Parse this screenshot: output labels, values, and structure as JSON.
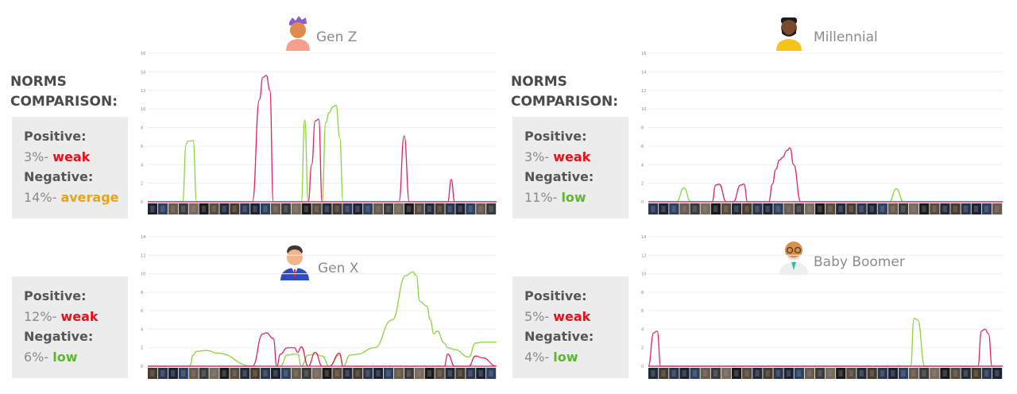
{
  "colors": {
    "positive": "#8cd43c",
    "negative": "#e0245e",
    "weak": "#e8101a",
    "average": "#e8a317",
    "low": "#5cb82e"
  },
  "panels": [
    {
      "norms_heading": [
        "NORMS",
        "COMPARISON:"
      ],
      "positive_label": "Positive:",
      "positive_value": "3%-",
      "positive_rating": "weak",
      "negative_label": "Negative:",
      "negative_value": "14%-",
      "negative_rating": "average"
    },
    {
      "norms_heading": [
        "NORMS",
        "COMPARISON:"
      ],
      "positive_label": "Positive:",
      "positive_value": "3%-",
      "positive_rating": "weak",
      "negative_label": "Negative:",
      "negative_value": "11%-",
      "negative_rating": "low"
    },
    {
      "positive_label": "Positive:",
      "positive_value": "12%-",
      "positive_rating": "weak",
      "negative_label": "Negative:",
      "negative_value": "6%-",
      "negative_rating": "low"
    },
    {
      "positive_label": "Positive:",
      "positive_value": "5%-",
      "positive_rating": "weak",
      "negative_label": "Negative:",
      "negative_value": "4%-",
      "negative_rating": "low"
    }
  ],
  "chart_data": [
    {
      "type": "line",
      "title": "Gen Z",
      "avatar": "gen-z-avatar-icon",
      "xlabel": "",
      "ylabel": "",
      "ylim": [
        0,
        16
      ],
      "yticks": [
        "0",
        "2",
        "4",
        "6",
        "8",
        "10",
        "12",
        "14",
        "16"
      ],
      "grid": true,
      "x": [
        0,
        0.09,
        0.1,
        0.11,
        0.115,
        0.13,
        0.14,
        0.17,
        0.3,
        0.32,
        0.33,
        0.34,
        0.35,
        0.36,
        0.37,
        0.4,
        0.43,
        0.44,
        0.45,
        0.46,
        0.47,
        0.48,
        0.49,
        0.5,
        0.51,
        0.52,
        0.53,
        0.54,
        0.55,
        0.56,
        0.6,
        0.72,
        0.735,
        0.75,
        0.77,
        0.86,
        0.87,
        0.88,
        0.89,
        1.0
      ],
      "series": [
        {
          "values": [
            0,
            0,
            0,
            6.2,
            6.5,
            6.6,
            0,
            0,
            0,
            0,
            0,
            0,
            0,
            0,
            0,
            0,
            0,
            0,
            8.8,
            0,
            0,
            0,
            0,
            0,
            8.5,
            9.6,
            10.2,
            10.4,
            7,
            0,
            0,
            0,
            0,
            0,
            0,
            0,
            0,
            0,
            0,
            0
          ]
        },
        {
          "values": [
            0,
            0,
            0,
            0,
            0,
            0,
            0,
            0,
            0,
            11,
            13.4,
            13.6,
            12,
            0,
            0,
            0,
            0,
            0,
            0,
            0,
            4,
            8.7,
            8.9,
            0,
            0,
            0,
            0,
            0,
            0,
            0,
            0,
            0,
            7.1,
            0,
            0,
            0,
            2.4,
            0,
            0,
            0
          ]
        }
      ]
    },
    {
      "type": "line",
      "title": "Millennial",
      "avatar": "millennial-avatar-icon",
      "xlabel": "",
      "ylabel": "",
      "ylim": [
        0,
        16
      ],
      "yticks": [
        "0",
        "2",
        "4",
        "6",
        "8",
        "10",
        "12",
        "14",
        "16"
      ],
      "grid": true,
      "x": [
        0,
        0.08,
        0.1,
        0.12,
        0.18,
        0.19,
        0.2,
        0.22,
        0.24,
        0.26,
        0.27,
        0.28,
        0.33,
        0.34,
        0.35,
        0.36,
        0.37,
        0.38,
        0.39,
        0.4,
        0.41,
        0.43,
        0.6,
        0.68,
        0.7,
        0.72,
        1.0
      ],
      "series": [
        {
          "values": [
            0,
            0,
            1.5,
            0,
            0,
            0,
            0,
            0,
            0,
            0,
            0,
            0,
            0,
            0,
            0,
            0,
            0,
            0,
            0,
            0,
            0,
            0,
            0,
            0,
            1.4,
            0,
            0
          ]
        },
        {
          "values": [
            0,
            0,
            0,
            0,
            0,
            1.8,
            1.9,
            0,
            0,
            1.8,
            1.9,
            0,
            0,
            0,
            1.9,
            3.5,
            4.5,
            4.8,
            5.5,
            5.8,
            4,
            0,
            0,
            0,
            0,
            0,
            0
          ]
        }
      ]
    },
    {
      "type": "line",
      "title": "Gen X",
      "avatar": "gen-x-avatar-icon",
      "xlabel": "",
      "ylabel": "",
      "ylim": [
        0,
        14
      ],
      "yticks": [
        "0",
        "2",
        "4",
        "6",
        "8",
        "10",
        "12",
        "14"
      ],
      "grid": true,
      "x": [
        0,
        0.12,
        0.13,
        0.14,
        0.17,
        0.2,
        0.3,
        0.33,
        0.34,
        0.36,
        0.37,
        0.38,
        0.4,
        0.42,
        0.43,
        0.44,
        0.46,
        0.48,
        0.5,
        0.52,
        0.55,
        0.56,
        0.58,
        0.6,
        0.65,
        0.7,
        0.74,
        0.76,
        0.77,
        0.78,
        0.8,
        0.81,
        0.82,
        0.83,
        0.85,
        0.86,
        0.88,
        0.92,
        0.94,
        0.96,
        1.0
      ],
      "series": [
        {
          "values": [
            0,
            0,
            1.2,
            1.6,
            1.7,
            1.4,
            0,
            0,
            0,
            0,
            0,
            0,
            1.2,
            1.3,
            1.3,
            0,
            1.2,
            1.3,
            1.1,
            0,
            1.2,
            0,
            1.2,
            1.3,
            2.0,
            5.0,
            9.8,
            10.2,
            9.8,
            7.0,
            6.5,
            5.0,
            3.5,
            3.8,
            2.5,
            2.0,
            1.8,
            1.0,
            2.5,
            2.6,
            2.6
          ]
        },
        {
          "values": [
            0,
            0,
            0,
            0,
            0,
            0,
            0,
            3.5,
            3.6,
            3.0,
            0,
            1.3,
            2.0,
            2.0,
            1.5,
            2.1,
            0,
            1.5,
            0,
            0,
            1.4,
            0,
            0,
            0,
            0,
            0,
            0,
            0,
            0,
            0,
            0,
            0,
            0,
            0,
            0,
            1.3,
            0,
            0,
            1.1,
            0.9,
            0
          ]
        }
      ]
    },
    {
      "type": "line",
      "title": "Baby Boomer",
      "avatar": "baby-boomer-avatar-icon",
      "xlabel": "",
      "ylabel": "",
      "ylim": [
        0,
        14
      ],
      "yticks": [
        "0",
        "2",
        "4",
        "6",
        "8",
        "10",
        "12",
        "14"
      ],
      "grid": true,
      "x": [
        0,
        0.015,
        0.025,
        0.035,
        0.05,
        0.72,
        0.74,
        0.75,
        0.76,
        0.78,
        0.93,
        0.94,
        0.95,
        0.96,
        0.97,
        1.0
      ],
      "series": [
        {
          "values": [
            0,
            0,
            0,
            0,
            0,
            0,
            0,
            5.2,
            5.0,
            0,
            0,
            0,
            0,
            0,
            0,
            0
          ]
        },
        {
          "values": [
            0,
            3.6,
            3.8,
            0,
            0,
            0,
            0,
            0,
            0,
            0,
            0,
            3.8,
            4.0,
            3.5,
            0,
            0
          ]
        }
      ]
    }
  ]
}
